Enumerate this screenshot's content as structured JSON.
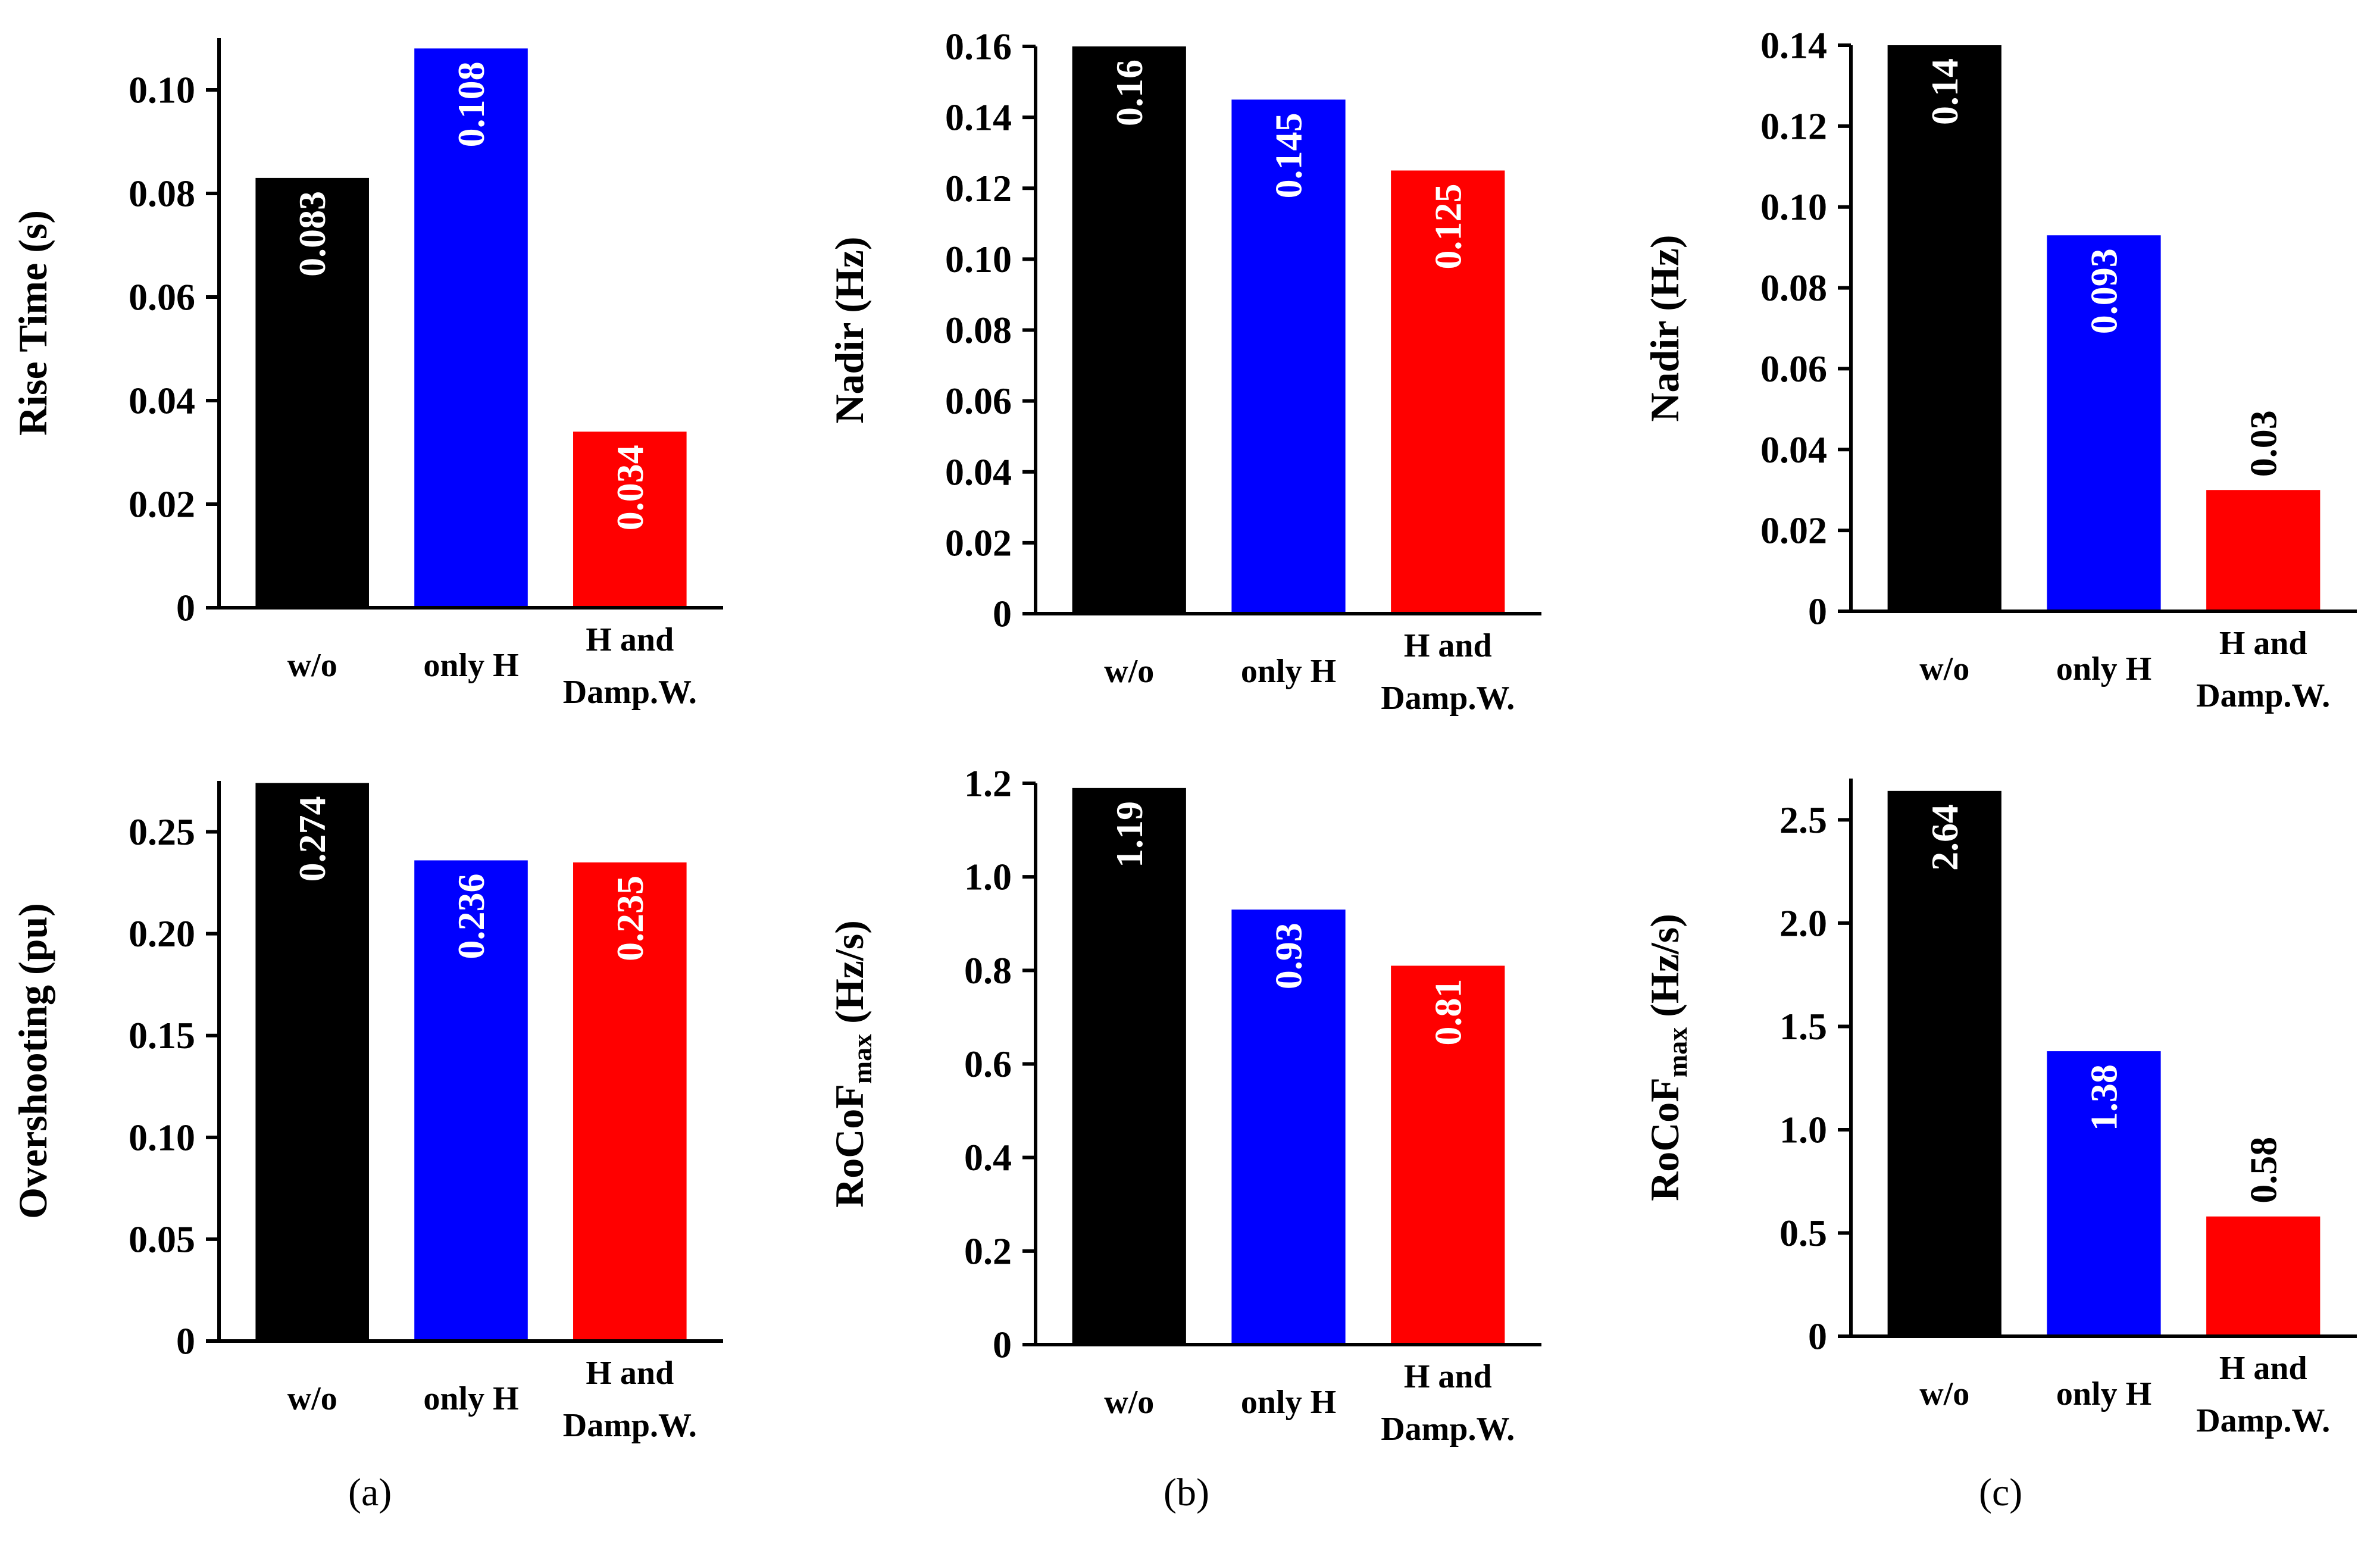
{
  "chart_data": [
    {
      "type": "bar",
      "panel": "a",
      "ylabel": "Rise Time (s)",
      "categories": [
        "w/o",
        "only H",
        "H and\nDamp.W."
      ],
      "values": [
        0.083,
        0.108,
        0.034
      ],
      "value_labels": [
        "0.083",
        "0.108",
        "0.034"
      ],
      "bar_colors": [
        "#000000",
        "#0000ff",
        "#ff0000"
      ],
      "ylim": [
        0,
        0.11
      ],
      "yticks": [
        0,
        0.02,
        0.04,
        0.06,
        0.08,
        0.1
      ],
      "ytick_labels": [
        "0",
        "0.02",
        "0.04",
        "0.06",
        "0.08",
        "0.10"
      ],
      "label_inside": [
        true,
        true,
        true
      ]
    },
    {
      "type": "bar",
      "panel": "b",
      "ylabel": "Nadir (Hz)",
      "categories": [
        "w/o",
        "only H",
        "H and\nDamp.W."
      ],
      "values": [
        0.16,
        0.145,
        0.125
      ],
      "value_labels": [
        "0.16",
        "0.145",
        "0.125"
      ],
      "bar_colors": [
        "#000000",
        "#0000ff",
        "#ff0000"
      ],
      "ylim": [
        0,
        0.16
      ],
      "yticks": [
        0,
        0.02,
        0.04,
        0.06,
        0.08,
        0.1,
        0.12,
        0.14,
        0.16
      ],
      "ytick_labels": [
        "0",
        "0.02",
        "0.04",
        "0.06",
        "0.08",
        "0.10",
        "0.12",
        "0.14",
        "0.16"
      ],
      "label_inside": [
        true,
        true,
        true
      ]
    },
    {
      "type": "bar",
      "panel": "c",
      "ylabel": "Nadir (Hz)",
      "categories": [
        "w/o",
        "only H",
        "H and\nDamp.W."
      ],
      "values": [
        0.14,
        0.093,
        0.03
      ],
      "value_labels": [
        "0.14",
        "0.093",
        "0.03"
      ],
      "bar_colors": [
        "#000000",
        "#0000ff",
        "#ff0000"
      ],
      "ylim": [
        0,
        0.14
      ],
      "yticks": [
        0,
        0.02,
        0.04,
        0.06,
        0.08,
        0.1,
        0.12,
        0.14
      ],
      "ytick_labels": [
        "0",
        "0.02",
        "0.04",
        "0.06",
        "0.08",
        "0.10",
        "0.12",
        "0.14"
      ],
      "label_inside": [
        true,
        true,
        false
      ]
    },
    {
      "type": "bar",
      "panel": "a",
      "ylabel": "Overshooting (pu)",
      "categories": [
        "w/o",
        "only H",
        "H and\nDamp.W."
      ],
      "values": [
        0.274,
        0.236,
        0.235
      ],
      "value_labels": [
        "0.274",
        "0.236",
        "0.235"
      ],
      "bar_colors": [
        "#000000",
        "#0000ff",
        "#ff0000"
      ],
      "ylim": [
        0,
        0.275
      ],
      "yticks": [
        0,
        0.05,
        0.1,
        0.15,
        0.2,
        0.25
      ],
      "ytick_labels": [
        "0",
        "0.05",
        "0.10",
        "0.15",
        "0.20",
        "0.25"
      ],
      "label_inside": [
        true,
        true,
        true
      ]
    },
    {
      "type": "bar",
      "panel": "b",
      "ylabel": "RoCoF",
      "ylabel_sub": "max",
      "ylabel_suffix": " (Hz/s)",
      "categories": [
        "w/o",
        "only H",
        "H and\nDamp.W."
      ],
      "values": [
        1.19,
        0.93,
        0.81
      ],
      "value_labels": [
        "1.19",
        "0.93",
        "0.81"
      ],
      "bar_colors": [
        "#000000",
        "#0000ff",
        "#ff0000"
      ],
      "ylim": [
        0,
        1.2
      ],
      "yticks": [
        0,
        0.2,
        0.4,
        0.6,
        0.8,
        1.0,
        1.2
      ],
      "ytick_labels": [
        "0",
        "0.2",
        "0.4",
        "0.6",
        "0.8",
        "1.0",
        "1.2"
      ],
      "label_inside": [
        true,
        true,
        true
      ]
    },
    {
      "type": "bar",
      "panel": "c",
      "ylabel": "RoCoF",
      "ylabel_sub": "max",
      "ylabel_suffix": " (Hz/s)",
      "categories": [
        "w/o",
        "only H",
        "H and\nDamp.W."
      ],
      "values": [
        2.64,
        1.38,
        0.58
      ],
      "value_labels": [
        "2.64",
        "1.38",
        "0.58"
      ],
      "bar_colors": [
        "#000000",
        "#0000ff",
        "#ff0000"
      ],
      "ylim": [
        0,
        2.7
      ],
      "yticks": [
        0,
        0.5,
        1.0,
        1.5,
        2.0,
        2.5
      ],
      "ytick_labels": [
        "0",
        "0.5",
        "1.0",
        "1.5",
        "2.0",
        "2.5"
      ],
      "label_inside": [
        true,
        true,
        false
      ]
    }
  ],
  "panel_labels": [
    "(a)",
    "(b)",
    "(c)"
  ]
}
